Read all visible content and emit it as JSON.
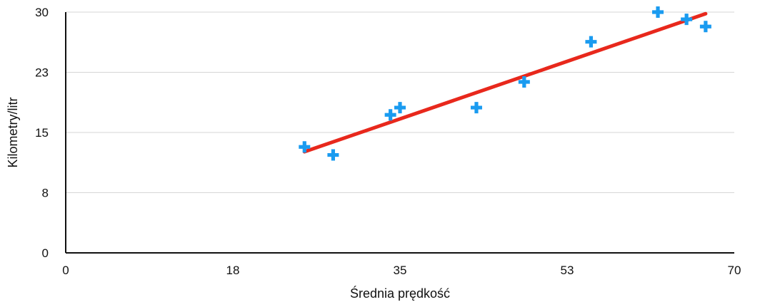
{
  "chart_data": {
    "type": "scatter",
    "title": "",
    "xlabel": "Średnia prędkość",
    "ylabel": "Kilometry/litr",
    "xlim": [
      0,
      70
    ],
    "ylim": [
      0,
      30
    ],
    "x_ticks": [
      "0",
      "18",
      "35",
      "53",
      "70"
    ],
    "y_ticks": [
      "0",
      "8",
      "15",
      "23",
      "30"
    ],
    "grid": "horizontal",
    "legend": "none",
    "marker": "plus",
    "series": [
      {
        "color": "#1a9bf0",
        "points": [
          {
            "x": 25,
            "y": 13.2
          },
          {
            "x": 28,
            "y": 12.2
          },
          {
            "x": 34,
            "y": 17.2
          },
          {
            "x": 35,
            "y": 18.1
          },
          {
            "x": 43,
            "y": 18.1
          },
          {
            "x": 48,
            "y": 21.3
          },
          {
            "x": 55,
            "y": 26.3
          },
          {
            "x": 62,
            "y": 30.0
          },
          {
            "x": 65,
            "y": 29.1
          },
          {
            "x": 67,
            "y": 28.2
          }
        ]
      }
    ],
    "trendline": {
      "type": "linear",
      "color": "#e8281c",
      "from": {
        "x": 25,
        "y": 12.6
      },
      "to": {
        "x": 67,
        "y": 29.8
      }
    }
  }
}
